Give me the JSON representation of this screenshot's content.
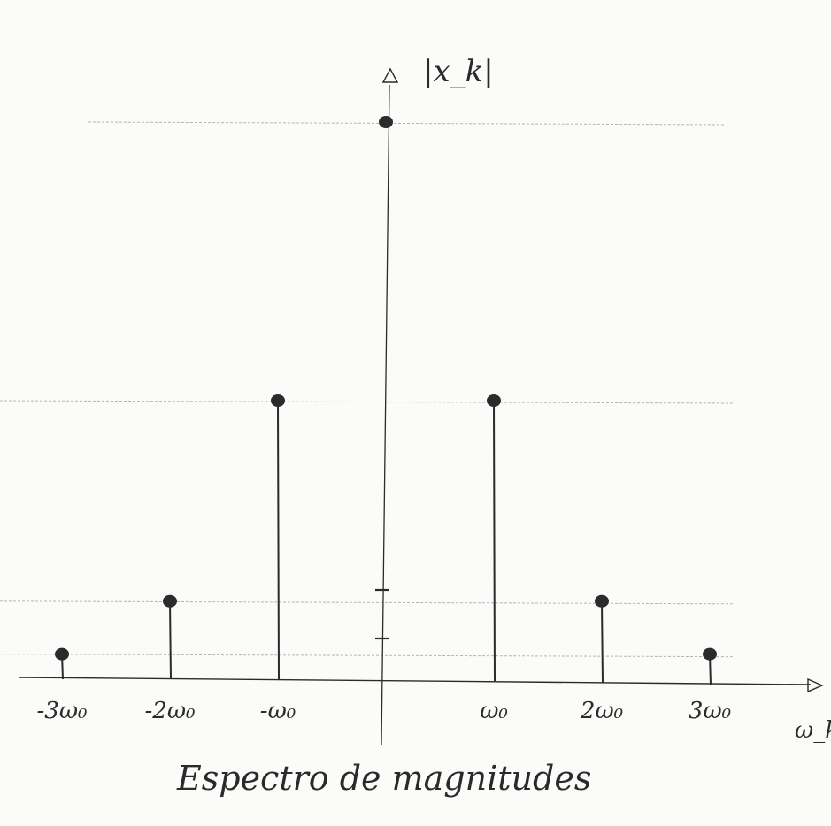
{
  "chart_data": {
    "type": "stem",
    "title": "Espectro de magnitudes",
    "ylabel": "|x_k|",
    "xlabel": "ω_k",
    "tick_labels": [
      "-3ω₀",
      "-2ω₀",
      "-ω₀",
      "ω₀",
      "2ω₀",
      "3ω₀"
    ],
    "x": [
      -3,
      -2,
      -1,
      0,
      1,
      2,
      3
    ],
    "values": [
      0.09,
      0.28,
      1.0,
      2.0,
      1.0,
      0.28,
      0.09
    ],
    "reference_levels": [
      2.0,
      1.0,
      0.28,
      0.09
    ],
    "xlim": [
      -3.2,
      3.9
    ],
    "ylim": [
      0,
      2.4
    ],
    "grid": true
  },
  "colors": {
    "ink": "#2b2b2b",
    "grid": "#b5b5b5",
    "paper": "#fbfbf9"
  }
}
